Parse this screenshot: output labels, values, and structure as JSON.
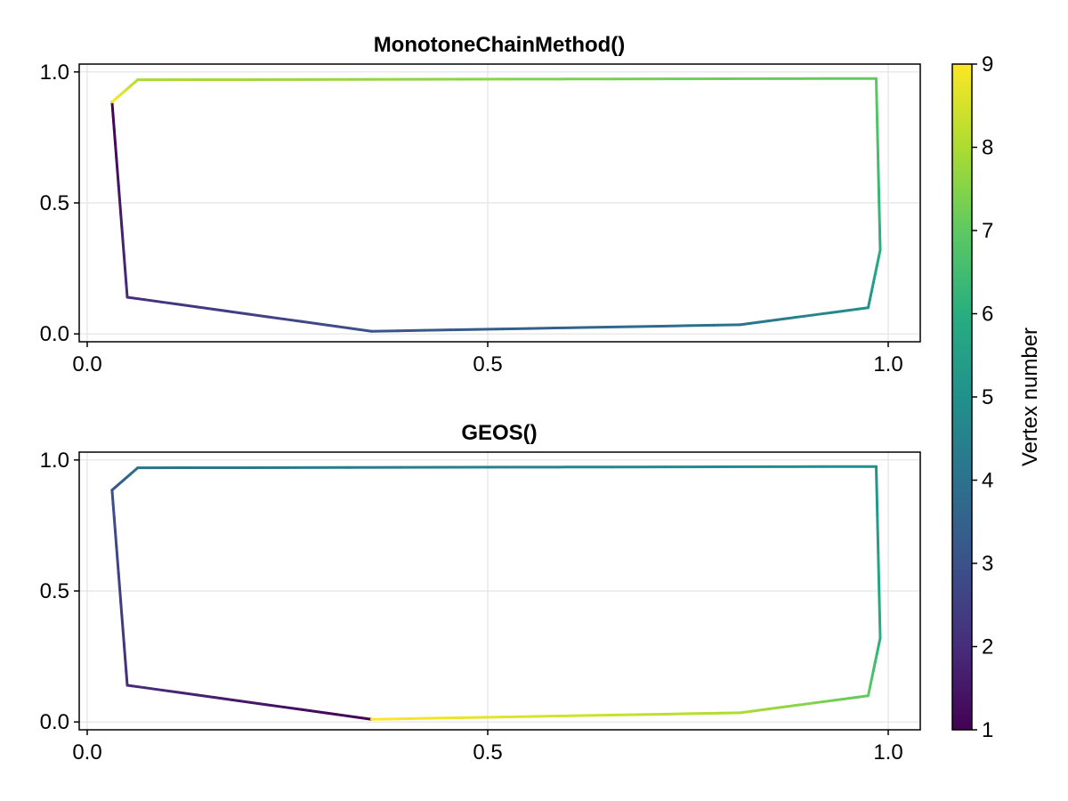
{
  "chart_data": [
    {
      "type": "line",
      "title": "MonotoneChainMethod()",
      "xlabel": "",
      "ylabel": "",
      "xlim": [
        -0.01,
        1.04
      ],
      "ylim": [
        -0.03,
        1.03
      ],
      "x_ticks": [
        0.0,
        0.5,
        1.0
      ],
      "x_tick_labels": [
        "0.0",
        "0.5",
        "1.0"
      ],
      "y_ticks": [
        0.0,
        0.5,
        1.0
      ],
      "y_tick_labels": [
        "0.0",
        "0.5",
        "1.0"
      ],
      "grid": true,
      "series": [
        {
          "x": [
            0.031,
            0.05,
            0.355,
            0.815,
            0.975,
            0.99,
            0.985,
            0.063,
            0.031
          ],
          "y": [
            0.885,
            0.14,
            0.01,
            0.035,
            0.1,
            0.32,
            0.975,
            0.97,
            0.885
          ],
          "color_values": [
            1,
            2,
            3,
            4,
            5,
            6,
            7,
            8,
            9
          ]
        }
      ]
    },
    {
      "type": "line",
      "title": "GEOS()",
      "xlabel": "",
      "ylabel": "",
      "xlim": [
        -0.01,
        1.04
      ],
      "ylim": [
        -0.03,
        1.03
      ],
      "x_ticks": [
        0.0,
        0.5,
        1.0
      ],
      "x_tick_labels": [
        "0.0",
        "0.5",
        "1.0"
      ],
      "y_ticks": [
        0.0,
        0.5,
        1.0
      ],
      "y_tick_labels": [
        "0.0",
        "0.5",
        "1.0"
      ],
      "grid": true,
      "series": [
        {
          "x": [
            0.355,
            0.05,
            0.031,
            0.063,
            0.985,
            0.99,
            0.975,
            0.815,
            0.355
          ],
          "y": [
            0.01,
            0.14,
            0.885,
            0.97,
            0.975,
            0.32,
            0.1,
            0.035,
            0.01
          ],
          "color_values": [
            1,
            2,
            3,
            4,
            5,
            6,
            7,
            8,
            9
          ]
        }
      ]
    },
    {
      "type": "colorbar",
      "label": "Vertex number",
      "range": [
        1,
        9
      ],
      "ticks": [
        1,
        2,
        3,
        4,
        5,
        6,
        7,
        8,
        9
      ],
      "tick_labels": [
        "1",
        "2",
        "3",
        "4",
        "5",
        "6",
        "7",
        "8",
        "9"
      ],
      "colormap": "viridis",
      "colormap_stops": [
        "#440154",
        "#472d7b",
        "#3b528b",
        "#2c728e",
        "#21918c",
        "#28ae80",
        "#5ec962",
        "#addc30",
        "#fde725"
      ]
    }
  ]
}
